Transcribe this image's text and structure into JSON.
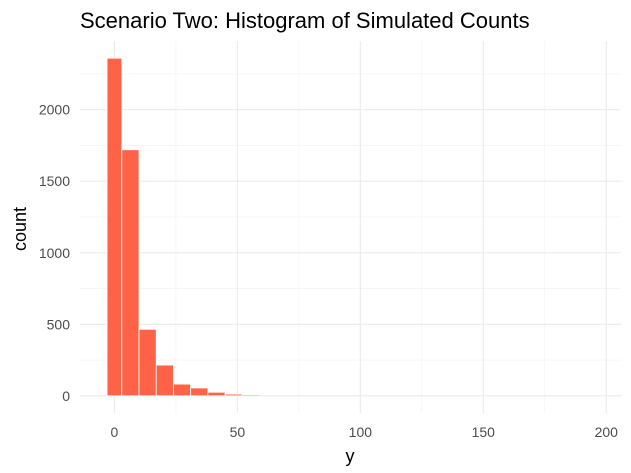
{
  "chart_data": {
    "type": "bar",
    "title": "Scenario Two: Histogram of Simulated Counts",
    "xlabel": "y",
    "ylabel": "count",
    "xlim": [
      -14,
      206
    ],
    "ylim": [
      -120,
      2480
    ],
    "x_ticks": [
      0,
      50,
      100,
      150,
      200
    ],
    "y_ticks": [
      0,
      500,
      1000,
      1500,
      2000
    ],
    "x_tick_labels": [
      "0",
      "50",
      "100",
      "150",
      "200"
    ],
    "y_tick_labels": [
      "0",
      "500",
      "1000",
      "1500",
      "2000"
    ],
    "grid": true,
    "legend": "none",
    "bar_color": "#FF6347",
    "bar_outline_color": "#ffffff",
    "bins": [
      {
        "x_start": -3,
        "x_end": 3,
        "count": 2360
      },
      {
        "x_start": 3,
        "x_end": 10,
        "count": 1720
      },
      {
        "x_start": 10,
        "x_end": 17,
        "count": 465
      },
      {
        "x_start": 17,
        "x_end": 24,
        "count": 215
      },
      {
        "x_start": 24,
        "x_end": 31,
        "count": 82
      },
      {
        "x_start": 31,
        "x_end": 38,
        "count": 55
      },
      {
        "x_start": 38,
        "x_end": 45,
        "count": 25
      },
      {
        "x_start": 45,
        "x_end": 52,
        "count": 12
      },
      {
        "x_start": 52,
        "x_end": 59,
        "count": 8
      }
    ]
  }
}
